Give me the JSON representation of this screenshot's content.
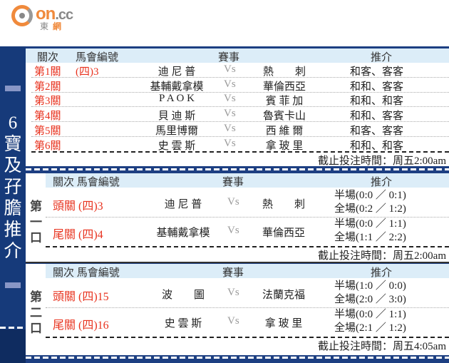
{
  "logo": {
    "brand": "on",
    "tld": ".cc",
    "cn1": "東",
    "cn2": "網"
  },
  "sidebar": {
    "title": "6寶及孖膽推介"
  },
  "headers": {
    "leg": "關次",
    "code": "馬會編號",
    "match": "賽事",
    "tip": "推介",
    "legcode": "關次 馬會編號"
  },
  "six": {
    "rows": [
      {
        "leg": "第1關",
        "code": "(四)3",
        "home": "迪 尼 普",
        "vs": "Vs",
        "away": "熱　　刺",
        "tip": "和客、客客"
      },
      {
        "leg": "第2關",
        "code": "",
        "home": "基輔戴拿模",
        "vs": "Vs",
        "away": "華倫西亞",
        "tip": "和和、客客"
      },
      {
        "leg": "第3關",
        "code": "",
        "home": "P A O K",
        "vs": "Vs",
        "away": "賓 菲 加",
        "tip": "和和、和客"
      },
      {
        "leg": "第4關",
        "code": "",
        "home": "貝 迪 斯",
        "vs": "Vs",
        "away": "魯賓卡山",
        "tip": "和和、客客"
      },
      {
        "leg": "第5關",
        "code": "",
        "home": "馬里博爾",
        "vs": "Vs",
        "away": "西 維 爾",
        "tip": "和客、客客"
      },
      {
        "leg": "第6關",
        "code": "",
        "home": "史 雲 斯",
        "vs": "Vs",
        "away": "拿 玻 里",
        "tip": "和和、和客"
      }
    ],
    "deadline": "截止投注時間：周五2:00am"
  },
  "doubles": [
    {
      "label": "第一口",
      "rows": [
        {
          "leg": "頭關 (四)3",
          "home": "迪 尼 普",
          "vs": "Vs",
          "away": "熱　　刺",
          "half": "半場(0:0 ／ 0:1)",
          "full": "全場(0:2 ／ 1:2)"
        },
        {
          "leg": "尾關 (四)4",
          "home": "基輔戴拿模",
          "vs": "Vs",
          "away": "華倫西亞",
          "half": "半場(0:0 ／ 1:1)",
          "full": "全場(1:1 ／ 2:2)"
        }
      ],
      "deadline": "截止投注時間：周五2:00am"
    },
    {
      "label": "第二口",
      "rows": [
        {
          "leg": "頭關 (四)15",
          "home": "波　　圖",
          "vs": "Vs",
          "away": "法蘭克福",
          "half": "半場(1:0 ／ 0:0)",
          "full": "全場(2:0 ／ 3:0)"
        },
        {
          "leg": "尾關 (四)16",
          "home": "史 雲 斯",
          "vs": "Vs",
          "away": "拿 玻 里",
          "half": "半場(0:0 ／ 1:1)",
          "full": "全場(2:1 ／ 1:2)"
        }
      ],
      "deadline": "截止投注時間：周五4:05am"
    }
  ]
}
